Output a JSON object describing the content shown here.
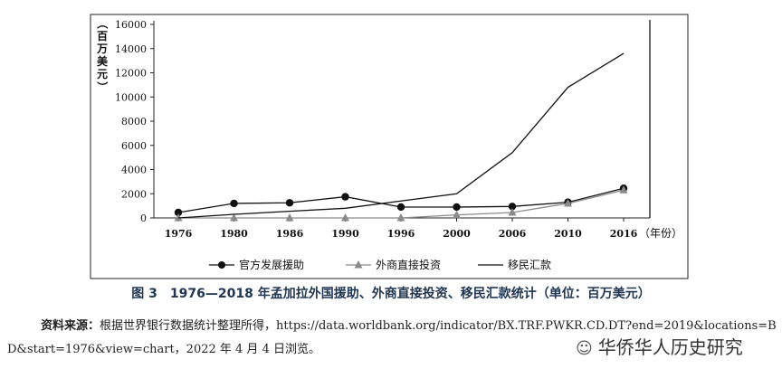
{
  "chart_data": {
    "type": "line",
    "categories": [
      "1976",
      "1980",
      "1986",
      "1990",
      "1996",
      "2000",
      "2006",
      "2010",
      "2016"
    ],
    "x_unit": "（年份）",
    "ylabel": "（百万美元）",
    "ylim": [
      0,
      16000
    ],
    "yticks": [
      0,
      2000,
      4000,
      6000,
      8000,
      10000,
      12000,
      14000,
      16000
    ],
    "grid": false,
    "legend_position": "bottom",
    "series": [
      {
        "name": "官方发展援助",
        "marker": "circle",
        "color": "#111111",
        "values": [
          450,
          1200,
          1250,
          1750,
          900,
          900,
          950,
          1300,
          2450
        ]
      },
      {
        "name": "外商直接投资",
        "marker": "triangle",
        "color": "#8a8a8a",
        "values": [
          0,
          0,
          0,
          0,
          0,
          250,
          450,
          1200,
          2300
        ]
      },
      {
        "name": "移民汇款",
        "marker": "none",
        "color": "#111111",
        "values": [
          0,
          300,
          550,
          800,
          1400,
          2000,
          5400,
          10800,
          13600
        ]
      }
    ]
  },
  "caption": "图 3　1976—2018 年孟加拉外国援助、外商直接投资、移民汇款统计（单位：百万美元）",
  "source_label": "资料来源：",
  "source_text": "根据世界银行数据统计整理所得，https://data.worldbank.org/indicator/BX.TRF.PWKR.CD.DT?end=2019&locations=BD&start=1976&view=chart，2022 年 4 月 4 日浏览。",
  "watermark": "华侨华人历史研究",
  "watermark_icon": "wechat-icon"
}
